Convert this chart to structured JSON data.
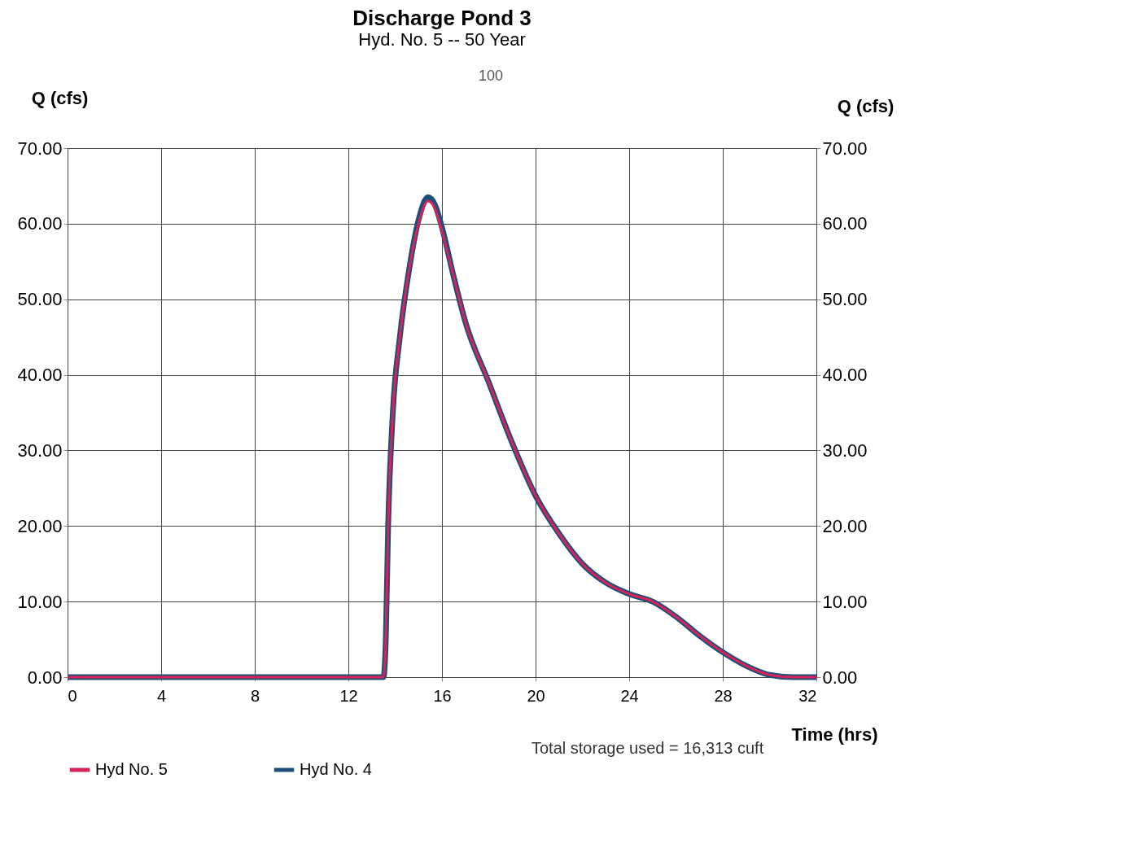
{
  "chart_data": {
    "type": "line",
    "title": "Discharge Pond 3",
    "subtitle": "Hyd. No. 5 -- 50 Year",
    "xlabel": "Time (hrs)",
    "ylabel": "Q (cfs)",
    "y2label": "Q (cfs)",
    "x": [
      0,
      4,
      8,
      12,
      13.5,
      13.6,
      13.7,
      13.9,
      14.2,
      14.6,
      15.0,
      15.4,
      15.7,
      16,
      16.5,
      17,
      18,
      19,
      20,
      21,
      22,
      23,
      24,
      25,
      26,
      27,
      28,
      29,
      30,
      31,
      32
    ],
    "series": [
      {
        "name": "Hyd No. 4",
        "color": "#1f4e79",
        "values": [
          0,
          0,
          0,
          0,
          0,
          5,
          20,
          35,
          45,
          54,
          60.5,
          63.5,
          62.5,
          59.5,
          53,
          47,
          39,
          31,
          24,
          19,
          15,
          12.5,
          11,
          10,
          8,
          5.5,
          3.3,
          1.5,
          0.3,
          0,
          0
        ]
      },
      {
        "name": "Hyd No. 5",
        "color": "#d6245a",
        "values": [
          0,
          0,
          0,
          0,
          0,
          5,
          20,
          35,
          45,
          54,
          60,
          63,
          62,
          59,
          53,
          47,
          39,
          31,
          24,
          19,
          15,
          12.5,
          11,
          10,
          8,
          5.5,
          3.3,
          1.5,
          0.3,
          0,
          0
        ]
      }
    ],
    "xlim": [
      0,
      32
    ],
    "xticks": [
      0,
      4,
      8,
      12,
      16,
      20,
      24,
      28,
      32
    ],
    "ylim": [
      0,
      70
    ],
    "yticks": [
      {
        "value": 0,
        "label": "0.00"
      },
      {
        "value": 10,
        "label": "10.00"
      },
      {
        "value": 20,
        "label": "20.00"
      },
      {
        "value": 30,
        "label": "30.00"
      },
      {
        "value": 40,
        "label": "40.00"
      },
      {
        "value": 50,
        "label": "50.00"
      },
      {
        "value": 60,
        "label": "60.00"
      },
      {
        "value": 70,
        "label": "70.00"
      }
    ],
    "y2lim": [
      0,
      70
    ],
    "y2ticks": [
      {
        "value": 0,
        "label": "0.00"
      },
      {
        "value": 10,
        "label": "10.00"
      },
      {
        "value": 20,
        "label": "20.00"
      },
      {
        "value": 30,
        "label": "30.00"
      },
      {
        "value": 40,
        "label": "40.00"
      },
      {
        "value": 50,
        "label": "50.00"
      },
      {
        "value": 60,
        "label": "60.00"
      },
      {
        "value": 70,
        "label": "70.00"
      }
    ],
    "annotations": [
      "100",
      "Total storage used = 16,313 cuft"
    ],
    "grid": true,
    "legend": "bottom",
    "marker": "none",
    "line_style": "solid"
  }
}
